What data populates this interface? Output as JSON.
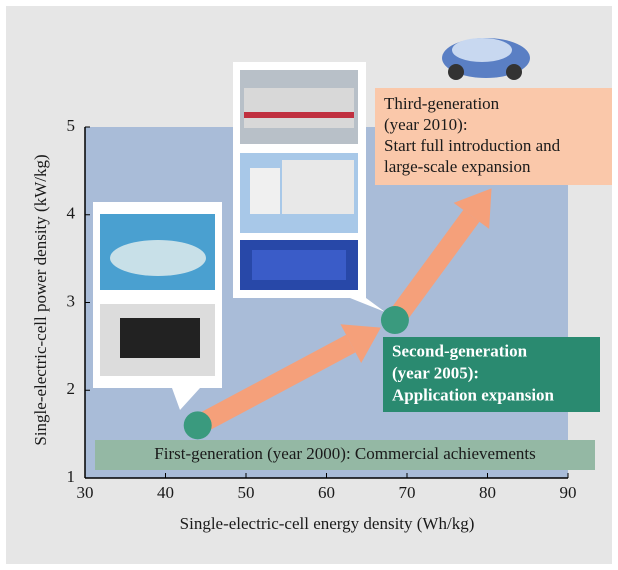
{
  "chart_data": {
    "type": "scatter",
    "x": [
      44,
      68.5,
      80.5
    ],
    "y": [
      1.6,
      2.8,
      4.3
    ],
    "point_color": "#3a9a7e",
    "arrow_color": "#f5a07a",
    "xlim": [
      30,
      90
    ],
    "xticks": [
      30,
      40,
      50,
      60,
      70,
      80,
      90
    ],
    "ylim": [
      1,
      5
    ],
    "yticks": [
      1,
      2,
      3,
      4,
      5
    ],
    "xlabel": "Single-electric-cell energy density (Wh/kg)",
    "ylabel": "Single-electric-cell power density (kW/kg)",
    "annotations": [
      {
        "lines": [
          "First-generation (year 2000): Commercial achievements"
        ],
        "color": "#94b8a4",
        "text_color": "#1a1a1a"
      },
      {
        "lines": [
          "Second-generation",
          "(year 2005):",
          "Application expansion"
        ],
        "color": "#2a8a70",
        "text_color": "#ffffff"
      },
      {
        "lines": [
          "Third-generation",
          "(year 2010):",
          "Start full introduction and",
          "large-scale expansion"
        ],
        "color": "#fac8aa",
        "text_color": "#1a1a1a"
      }
    ]
  }
}
